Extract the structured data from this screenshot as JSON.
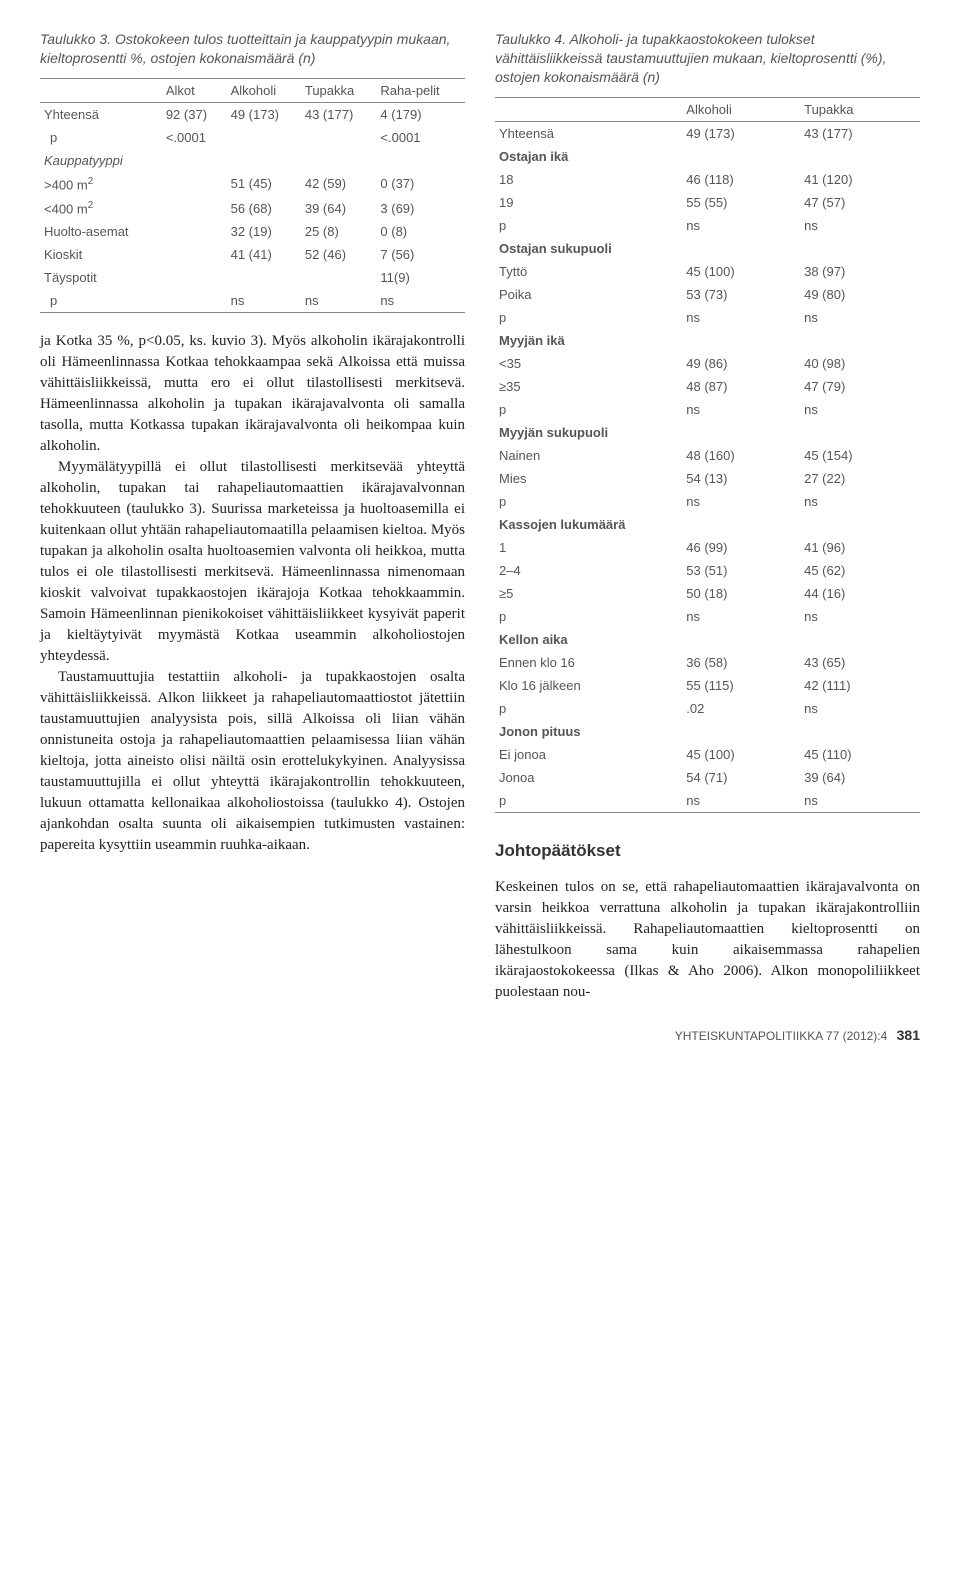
{
  "left": {
    "table3": {
      "caption": "Taulukko 3. Ostokokeen tulos tuotteittain ja kauppatyypin mukaan, kieltoprosentti %, ostojen kokonaismäärä (n)",
      "headers": [
        "",
        "Alkot",
        "Alkoholi",
        "Tupakka",
        "Raha-pelit"
      ],
      "rows": [
        {
          "cells": [
            "Yhteensä",
            "92 (37)",
            "49 (173)",
            "43 (177)",
            "4 (179)"
          ]
        },
        {
          "cells": [
            "p",
            "<.0001",
            "",
            "",
            "<.0001"
          ],
          "indent": true
        },
        {
          "cells": [
            "Kauppatyyppi",
            "",
            "",
            "",
            ""
          ],
          "italic": true
        },
        {
          "cells": [
            ">400 m²",
            "",
            "51 (45)",
            "42 (59)",
            "0 (37)"
          ]
        },
        {
          "cells": [
            "<400 m²",
            "",
            "56 (68)",
            "39 (64)",
            "3 (69)"
          ]
        },
        {
          "cells": [
            "Huolto-asemat",
            "",
            "32 (19)",
            "25 (8)",
            "0 (8)"
          ]
        },
        {
          "cells": [
            "Kioskit",
            "",
            "41 (41)",
            "52 (46)",
            "7 (56)"
          ]
        },
        {
          "cells": [
            "Täyspotit",
            "",
            "",
            "",
            "11(9)"
          ]
        },
        {
          "cells": [
            "p",
            "",
            "ns",
            "ns",
            "ns"
          ],
          "indent": true
        }
      ]
    },
    "para1": "ja Kotka 35 %, p<0.05, ks. kuvio 3). Myös alkoholin ikärajakontrolli oli Hämeenlinnassa Kotkaa tehokkaampaa sekä Alkoissa että muissa vähittäisliikkeissä, mutta ero ei ollut tilastollisesti merkitsevä. Hämeenlinnassa alkoholin ja tupakan ikärajavalvonta oli samalla tasolla, mutta Kotkassa tupakan ikärajavalvonta oli heikompaa kuin alkoholin.",
    "para2": "Myymälätyypillä ei ollut tilastollisesti merkitsevää yhteyttä alkoholin, tupakan tai rahapeliautomaattien ikärajavalvonnan tehokkuuteen (taulukko 3). Suurissa marketeissa ja huoltoasemilla ei kuitenkaan ollut yhtään rahapeliautomaatilla pelaamisen kieltoa. Myös tupakan ja alkoholin osalta huoltoasemien valvonta oli heikkoa, mutta tulos ei ole tilastollisesti merkitsevä. Hämeenlinnassa nimenomaan kioskit valvoivat tupakkaostojen ikärajoja Kotkaa tehokkaammin. Samoin Hämeenlinnan pienikokoiset vähittäisliikkeet kysyivät paperit ja kieltäytyivät myymästä Kotkaa useammin alkoholiostojen yhteydessä.",
    "para3": "Taustamuuttujia testattiin alkoholi- ja tupakkaostojen osalta vähittäisliikkeissä. Alkon liikkeet ja rahapeliautomaattiostot jätettiin taustamuuttujien analyysista pois, sillä Alkoissa oli liian vähän onnistuneita ostoja ja rahapeliautomaattien pelaamisessa liian vähän kieltoja, jotta aineisto olisi näiltä osin erottelukykyinen. Analyysissa taustamuuttujilla ei ollut yhteyttä ikärajakontrollin tehokkuuteen, lukuun ottamatta kellonaikaa alkoholiostoissa (taulukko 4). Ostojen ajankohdan osalta suunta oli aikaisempien tutkimusten vastainen: papereita kysyttiin useammin ruuhka-aikaan."
  },
  "right": {
    "table4": {
      "caption": "Taulukko 4. Alkoholi- ja tupakkaostokokeen tulokset vähittäisliikkeissä taustamuuttujien mukaan, kieltoprosentti (%), ostojen kokonaismäärä (n)",
      "headers": [
        "",
        "Alkoholi",
        "Tupakka"
      ],
      "rows": [
        {
          "cells": [
            "Yhteensä",
            "49 (173)",
            "43 (177)"
          ]
        },
        {
          "cells": [
            "Ostajan ikä",
            "",
            ""
          ],
          "section": true
        },
        {
          "cells": [
            "18",
            "46 (118)",
            "41 (120)"
          ]
        },
        {
          "cells": [
            "19",
            "55 (55)",
            "47 (57)"
          ]
        },
        {
          "cells": [
            "p",
            "ns",
            "ns"
          ]
        },
        {
          "cells": [
            "Ostajan sukupuoli",
            "",
            ""
          ],
          "section": true
        },
        {
          "cells": [
            "Tyttö",
            "45 (100)",
            "38 (97)"
          ]
        },
        {
          "cells": [
            "Poika",
            "53 (73)",
            "49 (80)"
          ]
        },
        {
          "cells": [
            "p",
            "ns",
            "ns"
          ]
        },
        {
          "cells": [
            "Myyjän ikä",
            "",
            ""
          ],
          "section": true
        },
        {
          "cells": [
            "<35",
            "49 (86)",
            "40 (98)"
          ]
        },
        {
          "cells": [
            "≥35",
            "48 (87)",
            "47 (79)"
          ]
        },
        {
          "cells": [
            "p",
            "ns",
            "ns"
          ]
        },
        {
          "cells": [
            "Myyjän sukupuoli",
            "",
            ""
          ],
          "section": true
        },
        {
          "cells": [
            "Nainen",
            "48 (160)",
            "45 (154)"
          ]
        },
        {
          "cells": [
            "Mies",
            "54 (13)",
            "27 (22)"
          ]
        },
        {
          "cells": [
            "p",
            "ns",
            "ns"
          ]
        },
        {
          "cells": [
            "Kassojen lukumäärä",
            "",
            ""
          ],
          "section": true
        },
        {
          "cells": [
            "1",
            "46 (99)",
            "41 (96)"
          ]
        },
        {
          "cells": [
            "2–4",
            "53 (51)",
            "45 (62)"
          ]
        },
        {
          "cells": [
            "≥5",
            "50 (18)",
            " 44 (16)"
          ]
        },
        {
          "cells": [
            "p",
            "ns",
            "ns"
          ]
        },
        {
          "cells": [
            "Kellon aika",
            "",
            ""
          ],
          "section": true
        },
        {
          "cells": [
            "Ennen klo 16",
            "36 (58)",
            "43 (65)"
          ]
        },
        {
          "cells": [
            "Klo 16 jälkeen",
            "55 (115)",
            "42 (111)"
          ]
        },
        {
          "cells": [
            "p",
            ".02",
            "ns"
          ]
        },
        {
          "cells": [
            "Jonon pituus",
            "",
            ""
          ],
          "section": true
        },
        {
          "cells": [
            "Ei jonoa",
            "45 (100)",
            "45 (110)"
          ]
        },
        {
          "cells": [
            "Jonoa",
            "54 (71)",
            "39 (64)"
          ]
        },
        {
          "cells": [
            "p",
            "ns",
            "ns"
          ]
        }
      ]
    },
    "section_heading": "Johtopäätökset",
    "para1": "Keskeinen tulos on se, että rahapeliautomaattien ikärajavalvonta on varsin heikkoa verrattuna alkoholin ja tupakan ikärajakontrolliin vähittäisliikkeissä. Rahapeliautomaattien kieltoprosentti on lähestulkoon sama kuin aikaisemmassa rahapelien ikärajaostokokeessa (Ilkas & Aho 2006). Alkon monopoliliikkeet puolestaan nou-"
  },
  "footer": {
    "journal": "YHTEISKUNTAPOLITIIKKA 77 (2012):4",
    "page": "381"
  }
}
